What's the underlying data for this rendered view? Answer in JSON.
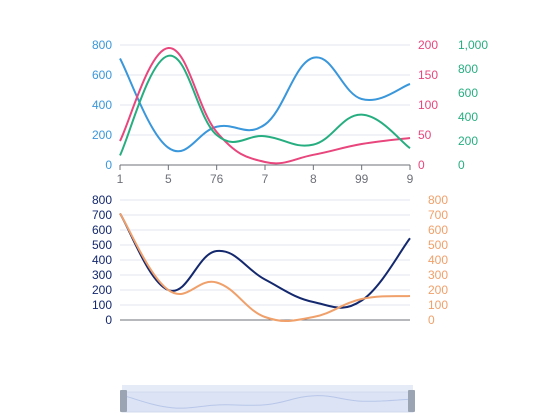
{
  "chart_data": [
    {
      "type": "line",
      "categories": [
        "1",
        "5",
        "76",
        "7",
        "8",
        "99",
        "9"
      ],
      "axes": [
        {
          "id": "left",
          "ticks": [
            "0",
            "200",
            "400",
            "600",
            "800"
          ],
          "range": [
            0,
            800
          ],
          "color": "#3a97db"
        },
        {
          "id": "right1",
          "ticks": [
            "0",
            "50",
            "100",
            "150",
            "200"
          ],
          "range": [
            0,
            200
          ],
          "color": "#e8467c"
        },
        {
          "id": "right2",
          "ticks": [
            "0",
            "200",
            "400",
            "600",
            "800",
            "1,000"
          ],
          "range": [
            0,
            1000
          ],
          "color": "#27ae80"
        }
      ],
      "series": [
        {
          "axis": "left",
          "color": "#3a97db",
          "values": [
            710,
            115,
            255,
            270,
            715,
            440,
            540
          ]
        },
        {
          "axis": "right1",
          "color": "#e8467c",
          "values": [
            40,
            195,
            55,
            5,
            17,
            35,
            45
          ]
        },
        {
          "axis": "right2",
          "color": "#27ae80",
          "values": [
            80,
            910,
            250,
            240,
            170,
            420,
            140
          ]
        }
      ],
      "grid": true,
      "smooth": true
    },
    {
      "type": "line",
      "categories": [
        "1",
        "5",
        "76",
        "7",
        "8",
        "99",
        "9"
      ],
      "axes": [
        {
          "id": "left",
          "ticks": [
            "0",
            "100",
            "200",
            "300",
            "400",
            "500",
            "600",
            "700",
            "800"
          ],
          "range": [
            0,
            800
          ],
          "color": "#14286e"
        },
        {
          "id": "right",
          "ticks": [
            "0",
            "100",
            "200",
            "300",
            "400",
            "500",
            "600",
            "700",
            "800"
          ],
          "range": [
            0,
            800
          ],
          "color": "#f0a06a"
        }
      ],
      "series": [
        {
          "axis": "left",
          "color": "#14286e",
          "values": [
            710,
            200,
            460,
            270,
            120,
            130,
            545
          ]
        },
        {
          "axis": "right",
          "color": "#f0a06a",
          "values": [
            710,
            200,
            250,
            20,
            20,
            140,
            160
          ]
        }
      ],
      "grid": true,
      "smooth": true
    }
  ],
  "zoom_slider": {
    "fill": "#dbe3f5",
    "handle": "#9aa4b2"
  }
}
